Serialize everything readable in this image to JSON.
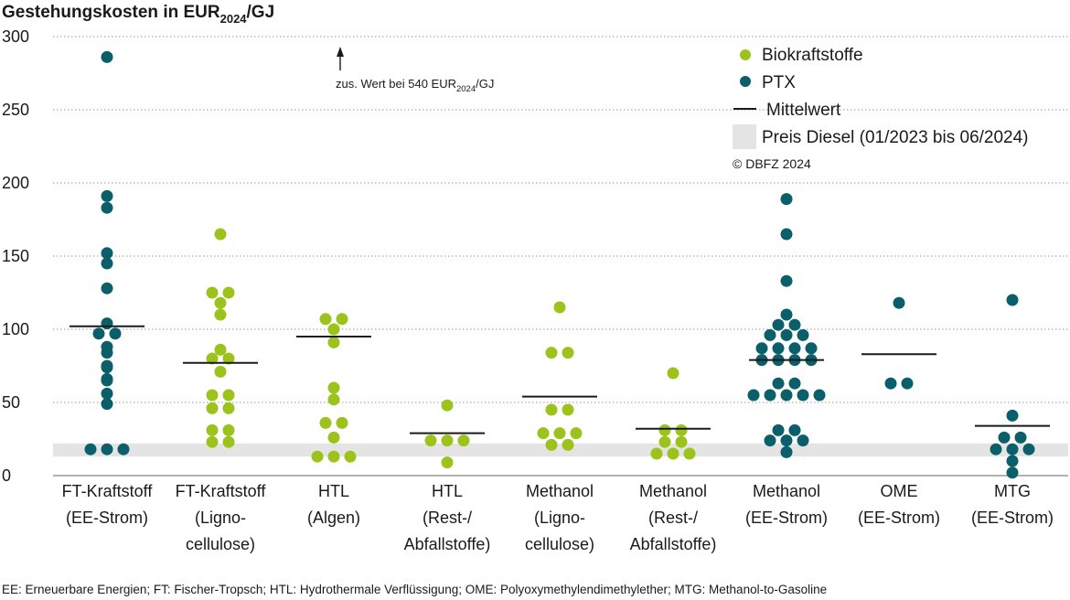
{
  "chart_data": {
    "type": "scatter",
    "title": {
      "main": "Gestehungskosten in EUR",
      "sub": "2024",
      "suffix": "/GJ"
    },
    "ylim": [
      0,
      300
    ],
    "yticks": [
      "0",
      "50",
      "100",
      "150",
      "200",
      "250",
      "300"
    ],
    "grid": true,
    "legend_position": "top-right",
    "colors": {
      "bio": "#9cc31b",
      "ptx": "#0b5f6b",
      "mean": "#1a1a1a",
      "diesel": "#e4e4e4",
      "grid": "#999999"
    },
    "legend": {
      "bio": "Biokraftstoffe",
      "ptx": "PTX",
      "mean": "Mittelwert",
      "diesel": "Preis Diesel (01/2023 bis 06/2024)",
      "copyright": "© DBFZ 2024"
    },
    "diesel_band": [
      13,
      22
    ],
    "annotation": {
      "prefix": "zus. Wert bei 540 EUR",
      "sub": "2024",
      "suffix": "/GJ",
      "category_index": 2
    },
    "categories": [
      {
        "line1": "FT-Kraftstoff",
        "line2": "(EE-Strom)",
        "line3": "",
        "group": "ptx",
        "mean": 102,
        "values": [
          286,
          191,
          183,
          152,
          145,
          128,
          104,
          97,
          97,
          88,
          84,
          75,
          74,
          66,
          65,
          56,
          49,
          18,
          18,
          18
        ]
      },
      {
        "line1": "FT-Kraftstoff",
        "line2": "(Ligno-",
        "line3": "cellulose)",
        "group": "bio",
        "mean": 77,
        "values": [
          165,
          125,
          125,
          118,
          110,
          86,
          80,
          80,
          71,
          55,
          55,
          46,
          46,
          31,
          31,
          23,
          23
        ]
      },
      {
        "line1": "HTL",
        "line2": "(Algen)",
        "line3": "",
        "group": "bio",
        "mean": 95,
        "values": [
          107,
          107,
          100,
          91,
          60,
          52,
          36,
          36,
          26,
          13,
          13,
          13
        ]
      },
      {
        "line1": "HTL",
        "line2": "(Rest-/",
        "line3": "Abfallstoffe)",
        "group": "bio",
        "mean": 29,
        "values": [
          48,
          24,
          24,
          24,
          9
        ]
      },
      {
        "line1": "Methanol",
        "line2": "(Ligno-",
        "line3": "cellulose)",
        "group": "bio",
        "mean": 54,
        "values": [
          115,
          84,
          84,
          45,
          45,
          29,
          29,
          29,
          21,
          21
        ]
      },
      {
        "line1": "Methanol",
        "line2": "(Rest-/",
        "line3": "Abfallstoffe)",
        "group": "bio",
        "mean": 32,
        "values": [
          70,
          31,
          31,
          23,
          23,
          15,
          15,
          15
        ]
      },
      {
        "line1": "Methanol",
        "line2": "(EE-Strom)",
        "line3": "",
        "group": "ptx",
        "mean": 79,
        "values": [
          189,
          165,
          133,
          110,
          103,
          103,
          96,
          96,
          96,
          87,
          87,
          87,
          87,
          79,
          79,
          79,
          79,
          63,
          63,
          55,
          55,
          55,
          55,
          55,
          31,
          31,
          24,
          24,
          24,
          16
        ]
      },
      {
        "line1": "OME",
        "line2": "(EE-Strom)",
        "line3": "",
        "group": "ptx",
        "mean": 83,
        "values": [
          118,
          63,
          63
        ]
      },
      {
        "line1": "MTG",
        "line2": "(EE-Strom)",
        "line3": "",
        "group": "ptx",
        "mean": 34,
        "values": [
          120,
          41,
          26,
          26,
          18,
          18,
          18,
          10,
          2
        ]
      }
    ]
  },
  "footnote": "EE: Erneuerbare Energien; FT: Fischer-Tropsch; HTL: Hydrothermale Verflüssigung; OME: Polyoxymethylendimethylether; MTG: Methanol-to-Gasoline"
}
